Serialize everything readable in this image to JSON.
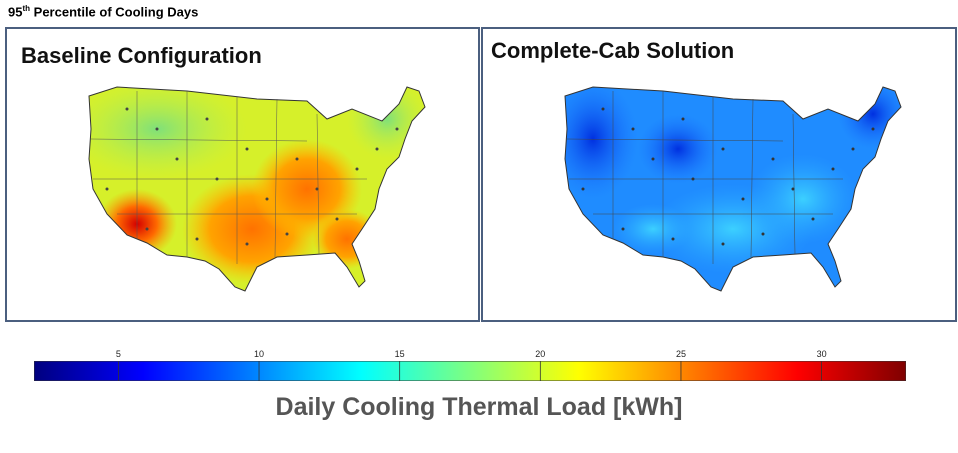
{
  "header": {
    "title_prefix": "95",
    "title_sup": "th",
    "title_rest": " Percentile of Cooling Days"
  },
  "panels": [
    {
      "title": "Baseline Configuration"
    },
    {
      "title": "Complete-Cab Solution"
    }
  ],
  "colorbar": {
    "min": 2,
    "max": 33,
    "ticks": [
      5,
      10,
      15,
      20,
      25,
      30
    ],
    "label": "Daily Cooling Thermal Load [kWh]"
  },
  "colors": {
    "border": "#4b5f7f",
    "colormap": [
      "#00007f",
      "#0000ff",
      "#007fff",
      "#00ffff",
      "#7fff7f",
      "#ffff00",
      "#ff7f00",
      "#ff0000",
      "#7f0000"
    ]
  }
}
